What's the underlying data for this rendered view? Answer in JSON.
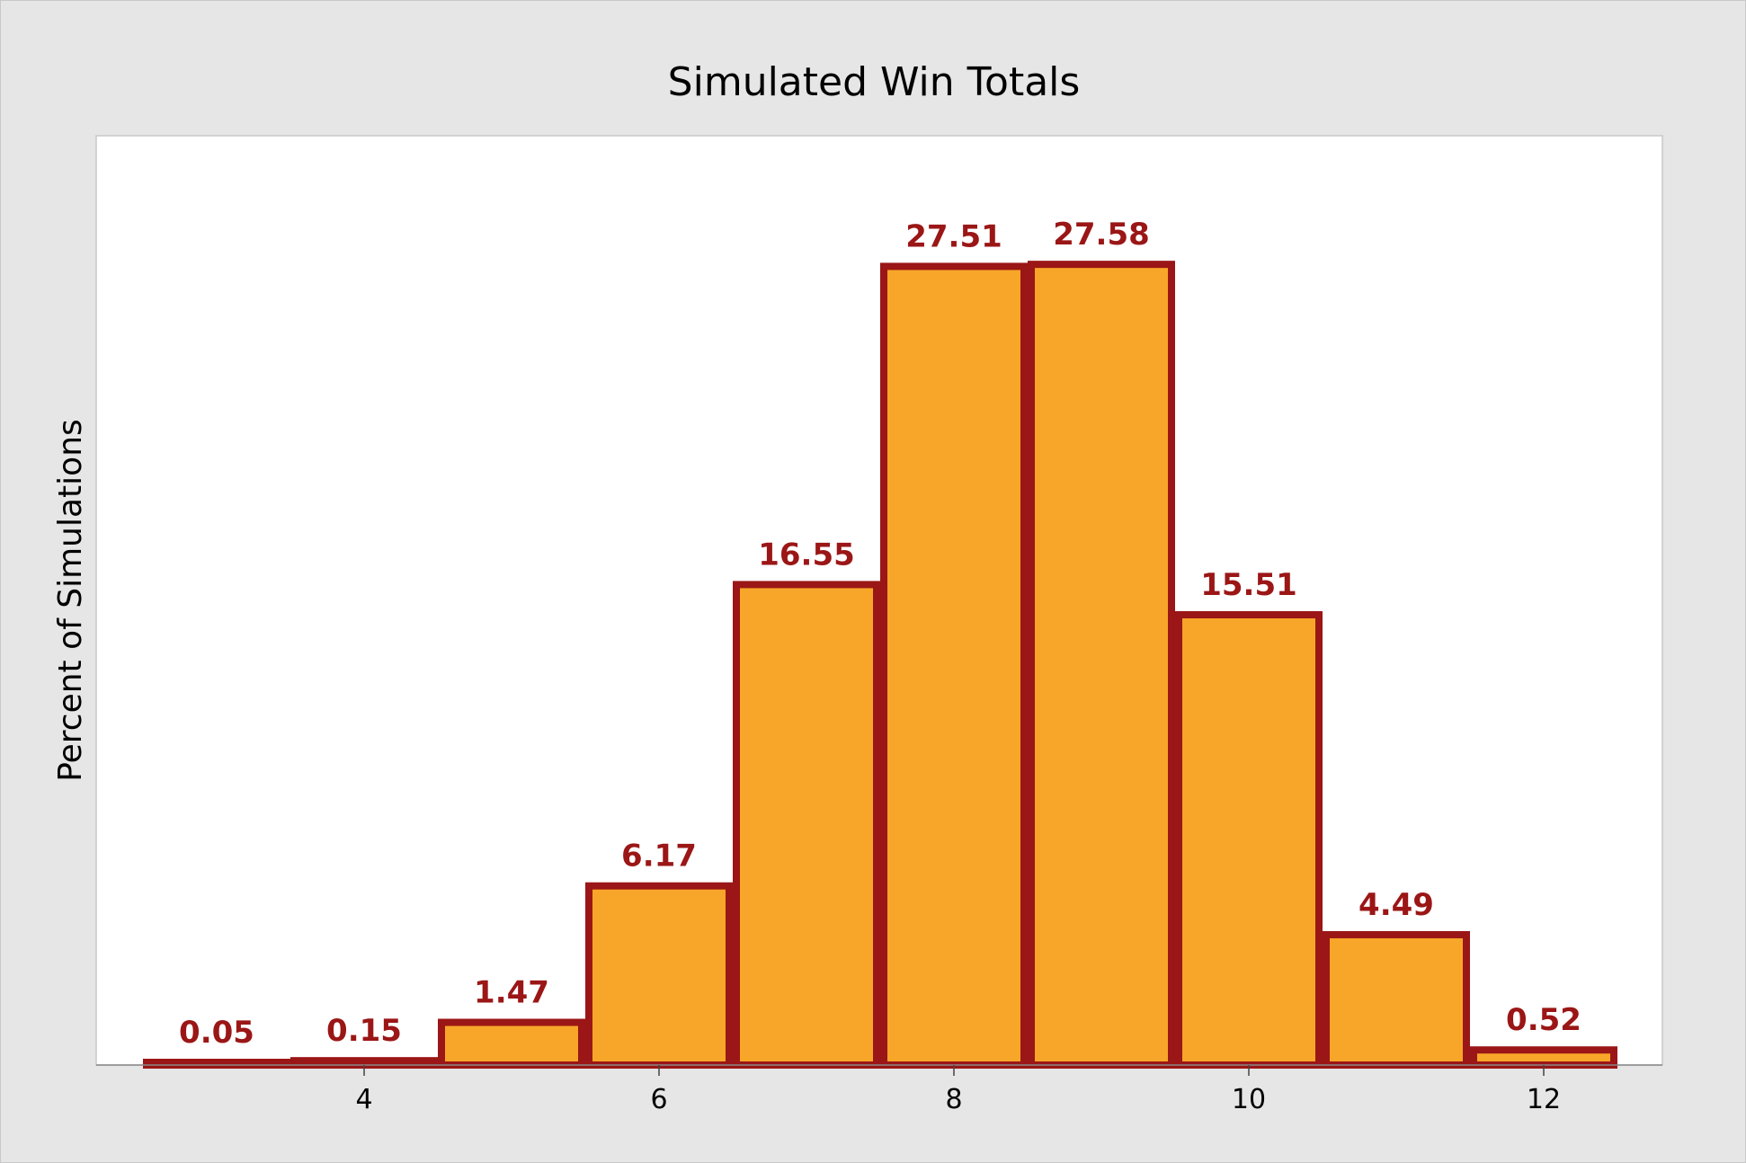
{
  "chart_data": {
    "type": "bar",
    "title": "Simulated Win Totals",
    "xlabel": "",
    "ylabel": "Percent of Simulations",
    "categories": [
      "3",
      "4",
      "5",
      "6",
      "7",
      "8",
      "9",
      "10",
      "11",
      "12"
    ],
    "values": [
      0.05,
      0.15,
      1.47,
      6.17,
      16.55,
      27.51,
      27.58,
      15.51,
      4.49,
      0.52
    ],
    "data_labels": [
      "0.05",
      "0.15",
      "1.47",
      "6.17",
      "16.55",
      "27.51",
      "27.58",
      "15.51",
      "4.49",
      "0.52"
    ],
    "x_ticks": [
      "4",
      "6",
      "8",
      "10",
      "12"
    ],
    "xlim": [
      2.5,
      12.5
    ],
    "ylim": [
      0,
      30
    ],
    "grid": false,
    "legend": "none",
    "colors": {
      "bar_fill": "#f8a629",
      "bar_edge": "#9b1616",
      "data_label": "#9b1616",
      "plot_background": "#ffffff",
      "figure_background": "#e6e6e6"
    }
  }
}
